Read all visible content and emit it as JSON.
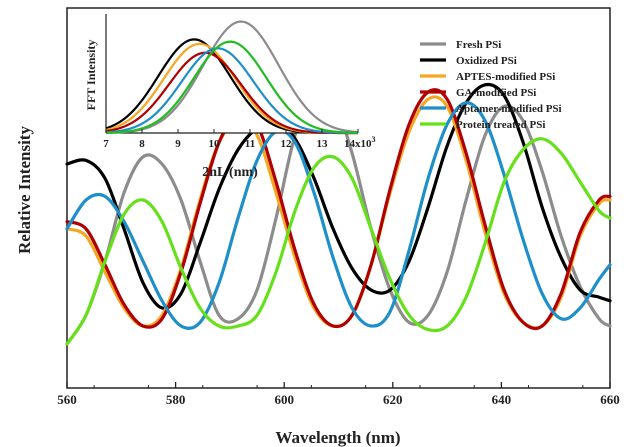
{
  "chart_data": [
    {
      "type": "line",
      "role": "main",
      "xlabel": "Wavelength (nm)",
      "ylabel": "Relative Intensity",
      "xlim": [
        560,
        660
      ],
      "ylim": [
        0,
        1
      ],
      "xticks": [
        560,
        580,
        600,
        620,
        640,
        660
      ],
      "yticks_shown": false,
      "grid": false,
      "legend_placement": "top-right",
      "series": [
        {
          "name": "Fresh PSi",
          "color": "#8c8c8c",
          "x": [
            560,
            563.5,
            567,
            570.5,
            574,
            577.5,
            581,
            584.5,
            588,
            591.5,
            595,
            598.5,
            602,
            605.5,
            609,
            612.5,
            616,
            619.5,
            623,
            626.5,
            630,
            633.5,
            637,
            640.5,
            644,
            647.5,
            651,
            654.5,
            658,
            660
          ],
          "y": [
            0.1,
            0.18,
            0.33,
            0.52,
            0.62,
            0.6,
            0.5,
            0.33,
            0.18,
            0.17,
            0.25,
            0.45,
            0.68,
            0.8,
            0.78,
            0.63,
            0.42,
            0.25,
            0.16,
            0.18,
            0.3,
            0.5,
            0.68,
            0.76,
            0.72,
            0.58,
            0.4,
            0.26,
            0.17,
            0.15
          ]
        },
        {
          "name": "Oxidized PSi",
          "color": "#000000",
          "x": [
            560,
            563.5,
            567,
            570.5,
            574,
            577.5,
            581,
            584.5,
            588,
            591.5,
            595,
            598.5,
            602,
            605.5,
            609,
            612.5,
            616,
            619.5,
            623,
            626.5,
            630,
            633.5,
            637,
            640.5,
            644,
            647.5,
            651,
            654.5,
            658,
            660
          ],
          "y": [
            0.6,
            0.61,
            0.56,
            0.42,
            0.27,
            0.2,
            0.24,
            0.38,
            0.53,
            0.64,
            0.7,
            0.72,
            0.67,
            0.56,
            0.42,
            0.31,
            0.25,
            0.25,
            0.33,
            0.48,
            0.65,
            0.77,
            0.82,
            0.79,
            0.66,
            0.48,
            0.34,
            0.25,
            0.23,
            0.22
          ]
        },
        {
          "name": "APTES-modified PSi",
          "color": "#f5a623",
          "x": [
            560,
            563.5,
            567,
            570.5,
            574,
            577.5,
            581,
            584.5,
            588,
            591.5,
            595,
            598.5,
            602,
            605.5,
            609,
            612.5,
            616,
            619.5,
            623,
            626.5,
            630,
            633.5,
            637,
            640.5,
            644,
            647.5,
            651,
            654.5,
            658,
            660
          ],
          "y": [
            0.42,
            0.4,
            0.3,
            0.2,
            0.15,
            0.18,
            0.31,
            0.5,
            0.66,
            0.72,
            0.68,
            0.52,
            0.34,
            0.2,
            0.15,
            0.18,
            0.32,
            0.52,
            0.69,
            0.78,
            0.76,
            0.61,
            0.41,
            0.24,
            0.16,
            0.15,
            0.23,
            0.4,
            0.49,
            0.5
          ]
        },
        {
          "name": "GA-modified PSi",
          "color": "#b00000",
          "x": [
            560,
            563.5,
            567,
            570.5,
            574,
            577.5,
            581,
            584.5,
            588,
            591.5,
            595,
            598.5,
            602,
            605.5,
            609,
            612.5,
            616,
            619.5,
            623,
            626.5,
            630,
            633.5,
            637,
            640.5,
            644,
            647.5,
            651,
            654.5,
            658,
            660
          ],
          "y": [
            0.44,
            0.42,
            0.32,
            0.21,
            0.15,
            0.17,
            0.3,
            0.49,
            0.66,
            0.74,
            0.71,
            0.55,
            0.36,
            0.21,
            0.15,
            0.18,
            0.32,
            0.53,
            0.71,
            0.8,
            0.78,
            0.63,
            0.43,
            0.25,
            0.16,
            0.15,
            0.24,
            0.41,
            0.5,
            0.51
          ]
        },
        {
          "name": "Aptamer-modified PSi",
          "color": "#1e8fc8",
          "x": [
            560,
            563.5,
            567,
            570.5,
            574,
            577.5,
            581,
            584.5,
            588,
            591.5,
            595,
            598.5,
            602,
            605.5,
            609,
            612.5,
            616,
            619.5,
            623,
            626.5,
            630,
            633.5,
            637,
            640.5,
            644,
            647.5,
            651,
            654.5,
            658,
            660
          ],
          "y": [
            0.42,
            0.5,
            0.51,
            0.44,
            0.33,
            0.22,
            0.15,
            0.16,
            0.27,
            0.45,
            0.61,
            0.69,
            0.66,
            0.52,
            0.34,
            0.2,
            0.15,
            0.19,
            0.36,
            0.56,
            0.71,
            0.77,
            0.72,
            0.57,
            0.39,
            0.24,
            0.17,
            0.2,
            0.28,
            0.32
          ]
        },
        {
          "name": "Protein treated PSi",
          "color": "#66e01a",
          "x": [
            560,
            563.5,
            567,
            570.5,
            574,
            577.5,
            581,
            584.5,
            588,
            591.5,
            595,
            598.5,
            602,
            605.5,
            609,
            612.5,
            616,
            619.5,
            623,
            626.5,
            630,
            633.5,
            637,
            640.5,
            644,
            647.5,
            651,
            654.5,
            658,
            660
          ],
          "y": [
            0.1,
            0.18,
            0.33,
            0.46,
            0.5,
            0.44,
            0.31,
            0.2,
            0.15,
            0.15,
            0.18,
            0.3,
            0.47,
            0.59,
            0.62,
            0.56,
            0.42,
            0.28,
            0.18,
            0.14,
            0.15,
            0.23,
            0.38,
            0.55,
            0.64,
            0.67,
            0.63,
            0.55,
            0.47,
            0.45
          ]
        }
      ]
    },
    {
      "type": "line",
      "role": "inset",
      "xlabel": "2nL (nm)",
      "ylabel": "FFT Intensity",
      "xlim": [
        7,
        14
      ],
      "ylim": [
        0,
        1.05
      ],
      "xticks": [
        7,
        8,
        9,
        10,
        11,
        12,
        13,
        14
      ],
      "xtick_labels": [
        "7",
        "8",
        "9",
        "10",
        "11",
        "12",
        "13",
        "14x10"
      ],
      "x_exponent": "3",
      "series": [
        {
          "name": "Fresh PSi",
          "color": "#8c8c8c",
          "peak": 10.75,
          "amplitude": 1.0,
          "sigma": 1.05
        },
        {
          "name": "Oxidized PSi",
          "color": "#000000",
          "peak": 9.45,
          "amplitude": 0.84,
          "sigma": 1.0
        },
        {
          "name": "APTES-modified PSi",
          "color": "#f5a623",
          "peak": 9.6,
          "amplitude": 0.8,
          "sigma": 1.0
        },
        {
          "name": "GA-modified PSi",
          "color": "#b00000",
          "peak": 9.75,
          "amplitude": 0.72,
          "sigma": 1.0
        },
        {
          "name": "Aptamer-modified PSi",
          "color": "#1e8fc8",
          "peak": 10.1,
          "amplitude": 0.76,
          "sigma": 1.0
        },
        {
          "name": "Protein treated PSi",
          "color": "#22bb22",
          "peak": 10.45,
          "amplitude": 0.82,
          "sigma": 1.0
        }
      ]
    }
  ]
}
